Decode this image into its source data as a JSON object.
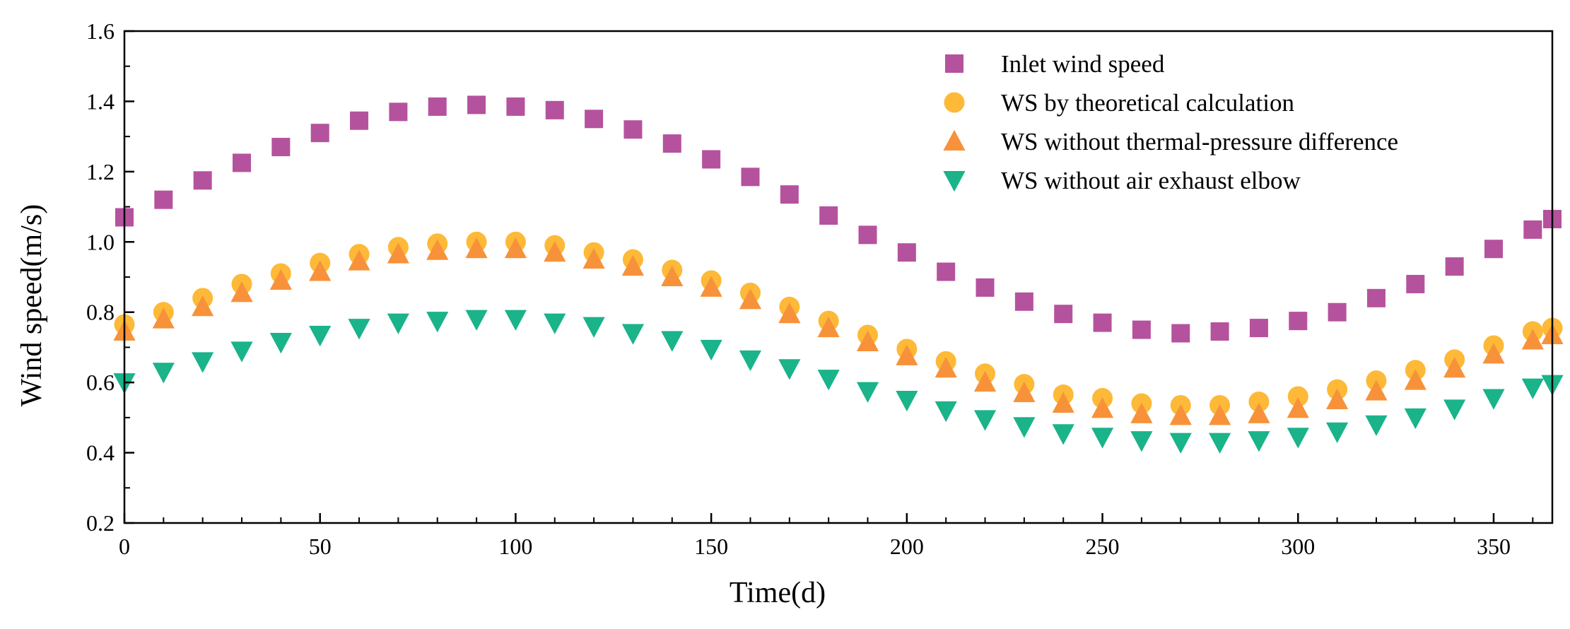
{
  "chart_data": {
    "type": "scatter",
    "title": "",
    "xlabel": "Time(d)",
    "ylabel": "Wind speed(m/s)",
    "xlim": [
      0,
      365
    ],
    "ylim": [
      0.2,
      1.6
    ],
    "x_ticks": [
      0,
      50,
      100,
      150,
      200,
      250,
      300,
      350
    ],
    "y_ticks": [
      0.2,
      0.4,
      0.6,
      0.8,
      1.0,
      1.2,
      1.4,
      1.6
    ],
    "x_tick_labels": [
      "0",
      "50",
      "100",
      "150",
      "200",
      "250",
      "300",
      "350"
    ],
    "y_tick_labels": [
      "0.2",
      "0.4",
      "0.6",
      "0.8",
      "1.0",
      "1.2",
      "1.4",
      "1.6"
    ],
    "grid": false,
    "legend_position": "top-right",
    "x": [
      0,
      10,
      20,
      30,
      40,
      50,
      60,
      70,
      80,
      90,
      100,
      110,
      120,
      130,
      140,
      150,
      160,
      170,
      180,
      190,
      200,
      210,
      220,
      230,
      240,
      250,
      260,
      270,
      280,
      290,
      300,
      310,
      320,
      330,
      340,
      350,
      360,
      365
    ],
    "series": [
      {
        "name": "Inlet wind speed",
        "marker": "square",
        "color": "#b5529e",
        "values": [
          1.07,
          1.12,
          1.175,
          1.225,
          1.27,
          1.31,
          1.345,
          1.37,
          1.385,
          1.39,
          1.385,
          1.375,
          1.35,
          1.32,
          1.28,
          1.235,
          1.185,
          1.135,
          1.075,
          1.02,
          0.97,
          0.915,
          0.87,
          0.83,
          0.795,
          0.77,
          0.75,
          0.74,
          0.745,
          0.755,
          0.775,
          0.8,
          0.84,
          0.88,
          0.93,
          0.98,
          1.035,
          1.065
        ]
      },
      {
        "name": "WS by theoretical calculation",
        "marker": "circle",
        "color": "#fdb937",
        "values": [
          0.765,
          0.8,
          0.84,
          0.88,
          0.91,
          0.94,
          0.965,
          0.985,
          0.995,
          1.0,
          1.0,
          0.99,
          0.97,
          0.95,
          0.92,
          0.89,
          0.855,
          0.815,
          0.775,
          0.735,
          0.695,
          0.66,
          0.625,
          0.595,
          0.565,
          0.555,
          0.54,
          0.535,
          0.535,
          0.545,
          0.56,
          0.58,
          0.605,
          0.635,
          0.665,
          0.705,
          0.745,
          0.755
        ]
      },
      {
        "name": "WS without thermal-pressure difference",
        "marker": "triangle-up",
        "color": "#f7923a",
        "values": [
          0.745,
          0.78,
          0.815,
          0.855,
          0.89,
          0.915,
          0.945,
          0.965,
          0.975,
          0.98,
          0.98,
          0.97,
          0.95,
          0.93,
          0.9,
          0.87,
          0.835,
          0.795,
          0.755,
          0.715,
          0.675,
          0.64,
          0.6,
          0.57,
          0.54,
          0.525,
          0.51,
          0.505,
          0.505,
          0.51,
          0.525,
          0.55,
          0.575,
          0.605,
          0.64,
          0.68,
          0.72,
          0.735
        ]
      },
      {
        "name": "WS without air exhaust elbow",
        "marker": "triangle-down",
        "color": "#1ab38a",
        "values": [
          0.6,
          0.63,
          0.66,
          0.69,
          0.715,
          0.735,
          0.755,
          0.77,
          0.775,
          0.78,
          0.78,
          0.77,
          0.76,
          0.74,
          0.72,
          0.695,
          0.665,
          0.64,
          0.61,
          0.575,
          0.55,
          0.52,
          0.495,
          0.475,
          0.455,
          0.445,
          0.435,
          0.43,
          0.43,
          0.435,
          0.445,
          0.46,
          0.48,
          0.5,
          0.525,
          0.555,
          0.585,
          0.595
        ]
      }
    ]
  }
}
